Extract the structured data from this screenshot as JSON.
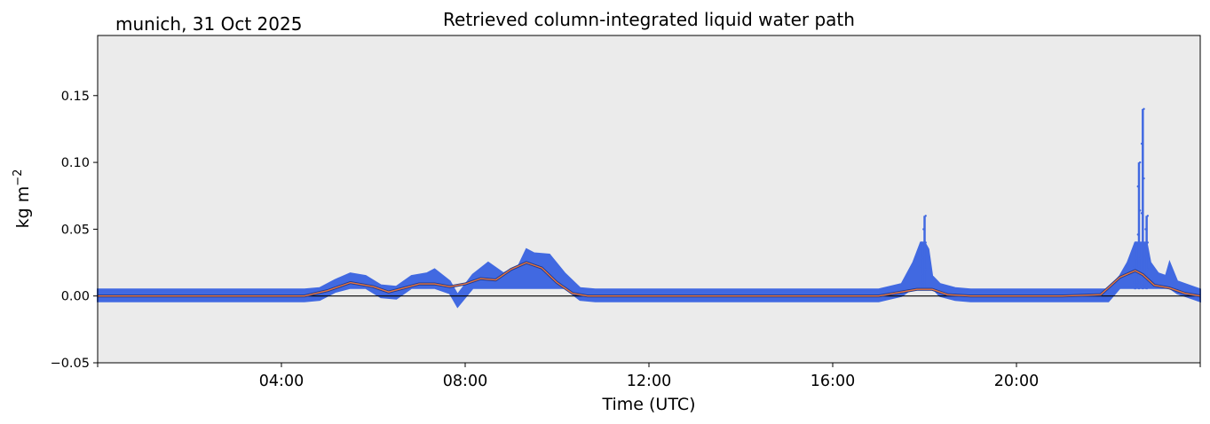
{
  "header": {
    "location_date": "munich, 31 Oct 2025",
    "title": "Retrieved column-integrated liquid water path"
  },
  "colors": {
    "plot_background": "#ebebeb",
    "raw_series": "#4169e1",
    "smoothed_series": "#e8743b",
    "smoothed_outline": "#1f3a8f",
    "zero_line": "#000000"
  },
  "chart_data": {
    "type": "scatter",
    "xlabel": "Time (UTC)",
    "ylabel": "kg m",
    "ylabel_superscript": "−2",
    "xlim": [
      "00:00",
      "24:00"
    ],
    "ylim": [
      -0.05,
      0.195
    ],
    "grid": false,
    "x_ticks": [
      {
        "value": "04:00",
        "label": "04:00"
      },
      {
        "value": "08:00",
        "label": "08:00"
      },
      {
        "value": "12:00",
        "label": "12:00"
      },
      {
        "value": "16:00",
        "label": "16:00"
      },
      {
        "value": "20:00",
        "label": "20:00"
      }
    ],
    "y_ticks": [
      {
        "value": -0.05,
        "label": "−0.05"
      },
      {
        "value": 0.0,
        "label": "0.00"
      },
      {
        "value": 0.05,
        "label": "0.05"
      },
      {
        "value": 0.1,
        "label": "0.10"
      },
      {
        "value": 0.15,
        "label": "0.15"
      }
    ],
    "reference_line": 0.0,
    "series": [
      {
        "kind": "raw",
        "x": [
          "00:00",
          "00:30",
          "01:00",
          "01:30",
          "02:00",
          "02:30",
          "03:00",
          "03:30",
          "04:00",
          "04:30",
          "04:50",
          "05:10",
          "05:30",
          "05:50",
          "06:10",
          "06:30",
          "06:50",
          "07:10",
          "07:20",
          "07:40",
          "07:50",
          "08:10",
          "08:30",
          "08:50",
          "09:10",
          "09:20",
          "09:30",
          "09:50",
          "10:10",
          "10:30",
          "10:50",
          "11:30",
          "12:00",
          "13:00",
          "14:00",
          "15:00",
          "16:00",
          "17:00",
          "17:30",
          "17:45",
          "17:55",
          "18:00",
          "18:05",
          "18:10",
          "18:20",
          "18:40",
          "19:00",
          "20:00",
          "21:00",
          "22:00",
          "22:15",
          "22:25",
          "22:35",
          "22:40",
          "22:45",
          "22:50",
          "22:55",
          "23:05",
          "23:15",
          "23:20",
          "23:30",
          "23:50",
          "24:00"
        ],
        "y": [
          0.0,
          0.0,
          0.0,
          0.0,
          0.0,
          0.0,
          0.0,
          0.0,
          0.0,
          0.0,
          0.001,
          0.007,
          0.012,
          0.01,
          0.003,
          0.002,
          0.01,
          0.012,
          0.015,
          0.006,
          -0.004,
          0.011,
          0.02,
          0.012,
          0.018,
          0.03,
          0.027,
          0.026,
          0.012,
          0.001,
          0.0,
          0.0,
          0.0,
          0.0,
          0.0,
          0.0,
          0.0,
          0.0,
          0.004,
          0.02,
          0.04,
          0.06,
          0.03,
          0.01,
          0.004,
          0.001,
          0.0,
          0.0,
          0.0,
          0.0,
          0.01,
          0.02,
          0.04,
          0.1,
          0.14,
          0.06,
          0.02,
          0.012,
          0.01,
          0.02,
          0.006,
          0.002,
          0.0
        ]
      },
      {
        "kind": "smoothed",
        "x": [
          "00:00",
          "01:00",
          "02:00",
          "03:00",
          "04:00",
          "04:30",
          "05:00",
          "05:30",
          "06:00",
          "06:20",
          "06:40",
          "07:00",
          "07:20",
          "07:40",
          "08:00",
          "08:20",
          "08:40",
          "09:00",
          "09:20",
          "09:40",
          "10:00",
          "10:20",
          "10:40",
          "11:00",
          "12:00",
          "13:00",
          "14:00",
          "15:00",
          "16:00",
          "17:00",
          "17:30",
          "17:50",
          "18:10",
          "18:30",
          "19:00",
          "20:00",
          "21:00",
          "21:50",
          "22:15",
          "22:35",
          "22:45",
          "23:00",
          "23:20",
          "23:40",
          "24:00"
        ],
        "y": [
          0.0,
          0.0,
          0.0,
          0.0,
          0.0,
          0.0,
          0.004,
          0.01,
          0.007,
          0.003,
          0.006,
          0.009,
          0.009,
          0.007,
          0.009,
          0.013,
          0.012,
          0.02,
          0.025,
          0.021,
          0.01,
          0.002,
          0.0,
          0.0,
          0.0,
          0.0,
          0.0,
          0.0,
          0.0,
          0.0,
          0.003,
          0.005,
          0.005,
          0.001,
          0.0,
          0.0,
          0.0,
          0.001,
          0.014,
          0.019,
          0.016,
          0.008,
          0.006,
          0.002,
          0.0
        ]
      }
    ]
  }
}
